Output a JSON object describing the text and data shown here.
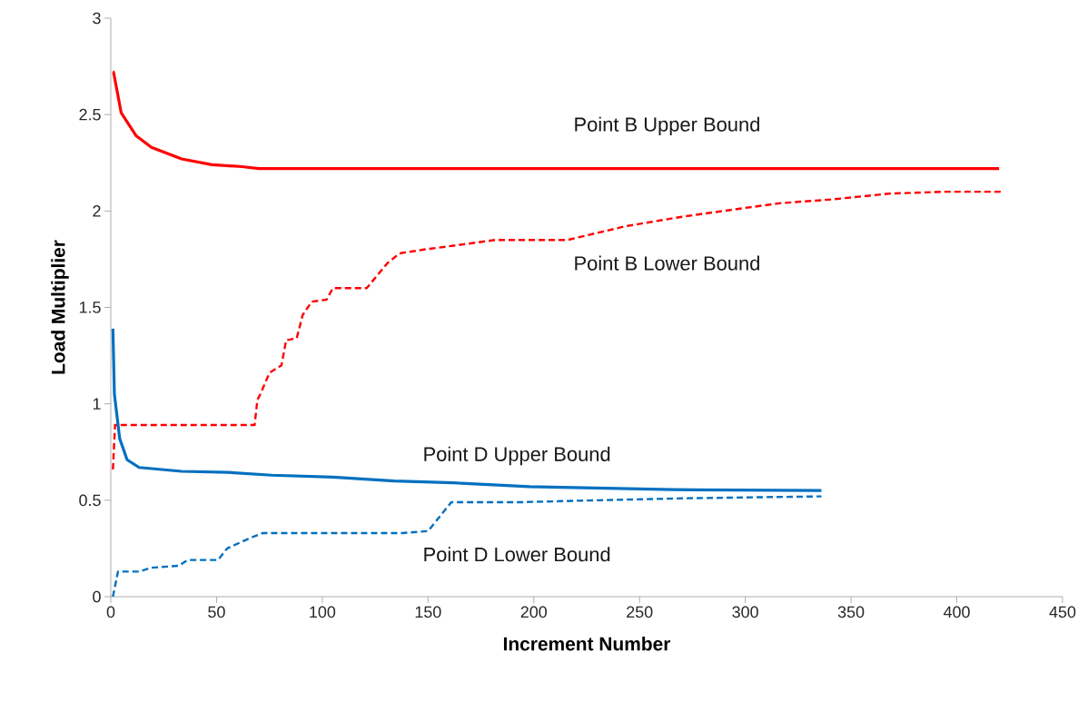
{
  "chart_data": {
    "type": "line",
    "xlabel": "Increment Number",
    "ylabel": "Load Multiplier",
    "xlim": [
      0,
      450
    ],
    "xticks": [
      0,
      50,
      100,
      150,
      200,
      250,
      300,
      350,
      400,
      450
    ],
    "ylim": [
      0,
      3
    ],
    "yticks": [
      0,
      0.5,
      1,
      1.5,
      2,
      2.5,
      3
    ],
    "grid": false,
    "legend": false,
    "marker": "none",
    "series": [
      {
        "name": "Point B Upper Bound",
        "color": "#ff0000",
        "line_style": "solid",
        "x": [
          1,
          1.3,
          4.9,
          12,
          19.2,
          33.5,
          47.8,
          62,
          70,
          420
        ],
        "values": [
          2.72,
          2.72,
          2.51,
          2.39,
          2.33,
          2.27,
          2.24,
          2.23,
          2.22,
          2.22
        ]
      },
      {
        "name": "Point B Lower Bound",
        "color": "#ff0000",
        "line_style": "dashed",
        "x": [
          1,
          2,
          68,
          69.3,
          70.7,
          75,
          80.7,
          82.9,
          87.9,
          90.7,
          95,
          102,
          105,
          121,
          130.8,
          136.5,
          148,
          162,
          182,
          216,
          243,
          270,
          296,
          316,
          341,
          368,
          395,
          421
        ],
        "values": [
          0.66,
          0.89,
          0.89,
          1.02,
          1.05,
          1.16,
          1.2,
          1.33,
          1.34,
          1.46,
          1.53,
          1.54,
          1.6,
          1.6,
          1.73,
          1.78,
          1.8,
          1.82,
          1.85,
          1.85,
          1.92,
          1.97,
          2.01,
          2.04,
          2.06,
          2.09,
          2.1,
          2.1
        ]
      },
      {
        "name": "Point D Upper Bound",
        "color": "#0070c0",
        "line_style": "solid",
        "x": [
          1,
          1.7,
          4.2,
          7.7,
          13.4,
          33.5,
          55,
          76,
          105,
          134,
          162,
          198,
          266,
          336
        ],
        "values": [
          1.39,
          1.05,
          0.82,
          0.71,
          0.67,
          0.65,
          0.645,
          0.63,
          0.62,
          0.6,
          0.59,
          0.57,
          0.555,
          0.55
        ]
      },
      {
        "name": "Point D Lower Bound",
        "color": "#0070c0",
        "line_style": "dashed",
        "x": [
          1,
          3.4,
          13.4,
          19,
          32,
          36.3,
          50.7,
          55,
          65,
          72,
          138,
          150,
          161,
          184,
          194.5,
          230,
          270,
          336
        ],
        "values": [
          0,
          0.13,
          0.13,
          0.15,
          0.16,
          0.19,
          0.19,
          0.25,
          0.3,
          0.33,
          0.33,
          0.34,
          0.49,
          0.49,
          0.49,
          0.5,
          0.51,
          0.52
        ]
      }
    ]
  }
}
